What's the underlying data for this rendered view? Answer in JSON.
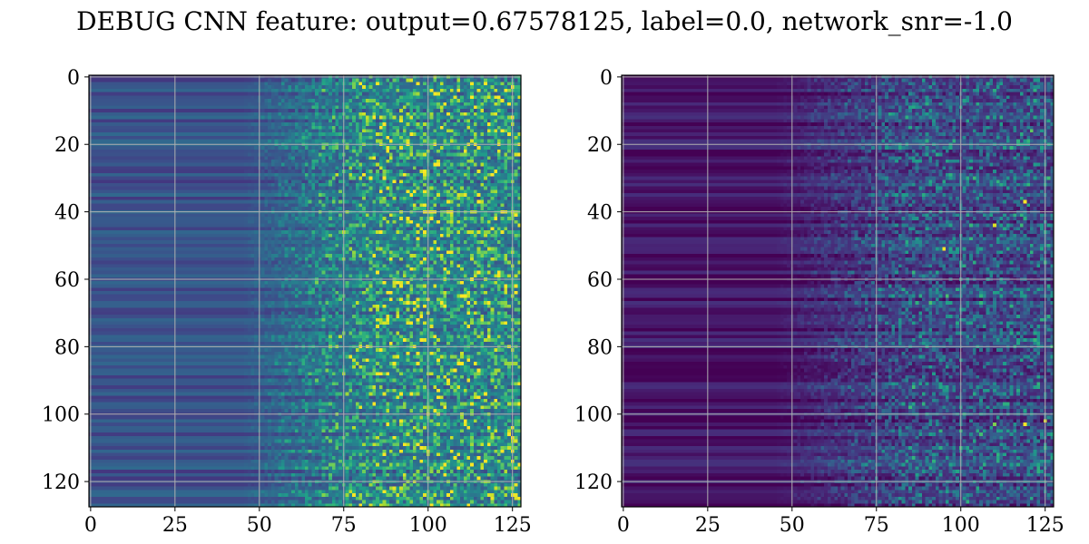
{
  "figure": {
    "title": "DEBUG CNN feature: output=0.67578125, label=0.0, network_snr=-1.0"
  },
  "chart_data": [
    {
      "type": "heatmap",
      "title": "",
      "xlabel": "",
      "ylabel": "",
      "rows": 128,
      "cols": 128,
      "colormap": "viridis",
      "xlim": [
        -0.5,
        127.5
      ],
      "ylim": [
        127.5,
        -0.5
      ],
      "x_ticks": [
        0,
        25,
        50,
        75,
        100,
        125
      ],
      "y_ticks": [
        0,
        20,
        40,
        60,
        80,
        100,
        120
      ],
      "grid": true,
      "description_of_values": "Low, row-striped values for columns 0-50, rising from column ~50 to a noisy mid-range field for columns 75-127; brightest cells near row 65, columns 108-112 and row 68 column 84.",
      "base_level": 0.25,
      "noise_level": 0.55,
      "hot_cells": [
        [
          65,
          110,
          1.0
        ],
        [
          65,
          111,
          1.0
        ],
        [
          65,
          109,
          0.85
        ],
        [
          68,
          84,
          0.9
        ],
        [
          11,
          89,
          0.75
        ],
        [
          11,
          99,
          0.7
        ],
        [
          18,
          82,
          0.6
        ],
        [
          42,
          106,
          0.65
        ],
        [
          103,
          86,
          0.6
        ],
        [
          44,
          99,
          0.65
        ],
        [
          64,
          104,
          0.75
        ],
        [
          126,
          99,
          0.6
        ]
      ]
    },
    {
      "type": "heatmap",
      "title": "",
      "xlabel": "",
      "ylabel": "",
      "rows": 128,
      "cols": 128,
      "colormap": "viridis",
      "xlim": [
        -0.5,
        127.5
      ],
      "ylim": [
        127.5,
        -0.5
      ],
      "x_ticks": [
        0,
        25,
        50,
        75,
        100,
        125
      ],
      "y_ticks": [
        0,
        20,
        40,
        60,
        80,
        100,
        120
      ],
      "grid": true,
      "description_of_values": "Very low values (dark purple) for columns 0-50, rising gradually to a sparse noisy field for columns 75-127 with a few bright isolated cells.",
      "base_level": 0.05,
      "noise_level": 0.35,
      "hot_cells": [
        [
          37,
          119,
          1.0
        ],
        [
          51,
          95,
          1.0
        ],
        [
          44,
          110,
          0.95
        ],
        [
          103,
          119,
          1.0
        ],
        [
          102,
          125,
          0.95
        ],
        [
          103,
          110,
          0.8
        ],
        [
          16,
          121,
          0.75
        ],
        [
          36,
          118,
          0.6
        ],
        [
          55,
          115,
          0.55
        ],
        [
          85,
          113,
          0.55
        ]
      ]
    }
  ]
}
